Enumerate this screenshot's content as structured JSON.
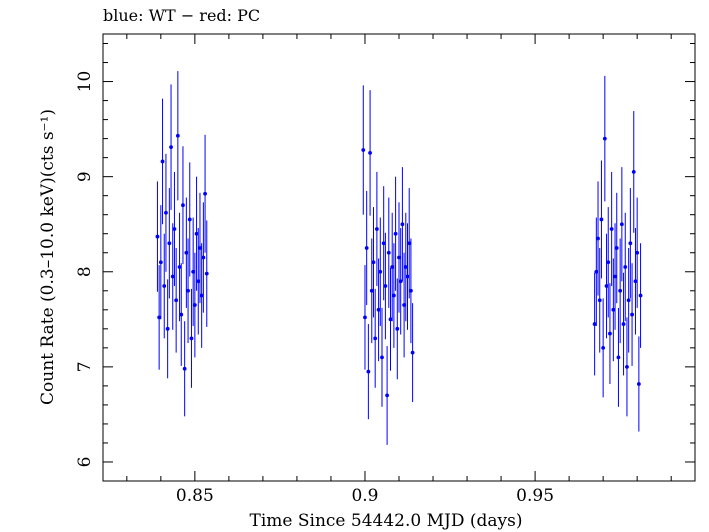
{
  "chart_data": {
    "type": "scatter",
    "title": "blue: WT − red: PC",
    "xlabel": "Time Since 54442.0 MJD (days)",
    "ylabel": "Count Rate (0.3–10.0 keV)(cts s⁻¹)",
    "xlim": [
      0.823,
      0.997
    ],
    "ylim": [
      5.8,
      10.5
    ],
    "x_ticks": [
      0.85,
      0.9,
      0.95
    ],
    "x_tick_labels": [
      "0.85",
      "0.9",
      "0.95"
    ],
    "y_ticks": [
      6,
      7,
      8,
      9,
      10
    ],
    "y_tick_labels": [
      "6",
      "7",
      "8",
      "9",
      "10"
    ],
    "grid": false,
    "series": [
      {
        "color": "#0000ff",
        "marker": "dot-with-error-bars",
        "points": [
          [
            0.839,
            8.37,
            0.58
          ],
          [
            0.8395,
            7.52,
            0.55
          ],
          [
            0.84,
            8.1,
            0.6
          ],
          [
            0.8405,
            9.16,
            0.66
          ],
          [
            0.841,
            7.85,
            0.55
          ],
          [
            0.8415,
            8.62,
            0.62
          ],
          [
            0.842,
            7.4,
            0.52
          ],
          [
            0.8425,
            8.3,
            0.58
          ],
          [
            0.843,
            9.31,
            0.66
          ],
          [
            0.8435,
            7.95,
            0.56
          ],
          [
            0.844,
            8.45,
            0.6
          ],
          [
            0.8445,
            7.7,
            0.55
          ],
          [
            0.845,
            9.43,
            0.68
          ],
          [
            0.8455,
            8.05,
            0.57
          ],
          [
            0.846,
            7.55,
            0.54
          ],
          [
            0.8465,
            8.7,
            0.62
          ],
          [
            0.847,
            6.98,
            0.5
          ],
          [
            0.8475,
            8.2,
            0.58
          ],
          [
            0.848,
            7.8,
            0.55
          ],
          [
            0.8485,
            8.55,
            0.6
          ],
          [
            0.849,
            7.3,
            0.52
          ],
          [
            0.8495,
            8.0,
            0.57
          ],
          [
            0.85,
            7.65,
            0.55
          ],
          [
            0.8505,
            8.4,
            0.6
          ],
          [
            0.851,
            7.9,
            0.56
          ],
          [
            0.8515,
            8.25,
            0.58
          ],
          [
            0.852,
            7.75,
            0.55
          ],
          [
            0.8525,
            8.15,
            0.58
          ],
          [
            0.853,
            8.82,
            0.62
          ],
          [
            0.8535,
            7.98,
            0.56
          ],
          [
            0.8995,
            9.28,
            0.68
          ],
          [
            0.9,
            7.52,
            0.55
          ],
          [
            0.9005,
            8.25,
            0.6
          ],
          [
            0.901,
            6.95,
            0.5
          ],
          [
            0.9015,
            9.25,
            0.66
          ],
          [
            0.902,
            7.8,
            0.55
          ],
          [
            0.9025,
            8.1,
            0.58
          ],
          [
            0.903,
            7.3,
            0.52
          ],
          [
            0.9035,
            8.45,
            0.6
          ],
          [
            0.904,
            7.6,
            0.54
          ],
          [
            0.9045,
            8.0,
            0.57
          ],
          [
            0.905,
            7.1,
            0.52
          ],
          [
            0.9055,
            8.3,
            0.6
          ],
          [
            0.906,
            7.85,
            0.56
          ],
          [
            0.9065,
            6.7,
            0.52
          ],
          [
            0.907,
            8.2,
            0.58
          ],
          [
            0.9075,
            7.5,
            0.54
          ],
          [
            0.908,
            8.05,
            0.57
          ],
          [
            0.9085,
            7.75,
            0.55
          ],
          [
            0.909,
            8.4,
            0.6
          ],
          [
            0.9095,
            7.4,
            0.53
          ],
          [
            0.91,
            8.15,
            0.58
          ],
          [
            0.9105,
            7.9,
            0.56
          ],
          [
            0.911,
            8.5,
            0.6
          ],
          [
            0.9115,
            7.65,
            0.55
          ],
          [
            0.912,
            8.05,
            0.57
          ],
          [
            0.9125,
            7.95,
            0.56
          ],
          [
            0.913,
            8.3,
            0.58
          ],
          [
            0.9135,
            7.8,
            0.55
          ],
          [
            0.914,
            7.15,
            0.52
          ],
          [
            0.9675,
            7.45,
            0.54
          ],
          [
            0.968,
            8.0,
            0.57
          ],
          [
            0.9685,
            8.35,
            0.6
          ],
          [
            0.969,
            7.7,
            0.55
          ],
          [
            0.9695,
            8.55,
            0.62
          ],
          [
            0.97,
            7.2,
            0.52
          ],
          [
            0.9705,
            9.4,
            0.66
          ],
          [
            0.971,
            7.85,
            0.55
          ],
          [
            0.9715,
            8.1,
            0.58
          ],
          [
            0.972,
            7.35,
            0.53
          ],
          [
            0.9725,
            8.45,
            0.6
          ],
          [
            0.973,
            7.6,
            0.54
          ],
          [
            0.9735,
            7.95,
            0.56
          ],
          [
            0.974,
            8.25,
            0.58
          ],
          [
            0.9745,
            7.1,
            0.52
          ],
          [
            0.975,
            7.8,
            0.55
          ],
          [
            0.9755,
            8.5,
            0.6
          ],
          [
            0.976,
            7.45,
            0.54
          ],
          [
            0.9765,
            8.05,
            0.57
          ],
          [
            0.977,
            7.0,
            0.52
          ],
          [
            0.9775,
            7.7,
            0.55
          ],
          [
            0.978,
            8.3,
            0.58
          ],
          [
            0.9785,
            7.55,
            0.54
          ],
          [
            0.979,
            9.05,
            0.64
          ],
          [
            0.9795,
            7.9,
            0.56
          ],
          [
            0.98,
            8.2,
            0.58
          ],
          [
            0.9805,
            6.82,
            0.5
          ],
          [
            0.981,
            7.75,
            0.55
          ]
        ]
      }
    ]
  }
}
